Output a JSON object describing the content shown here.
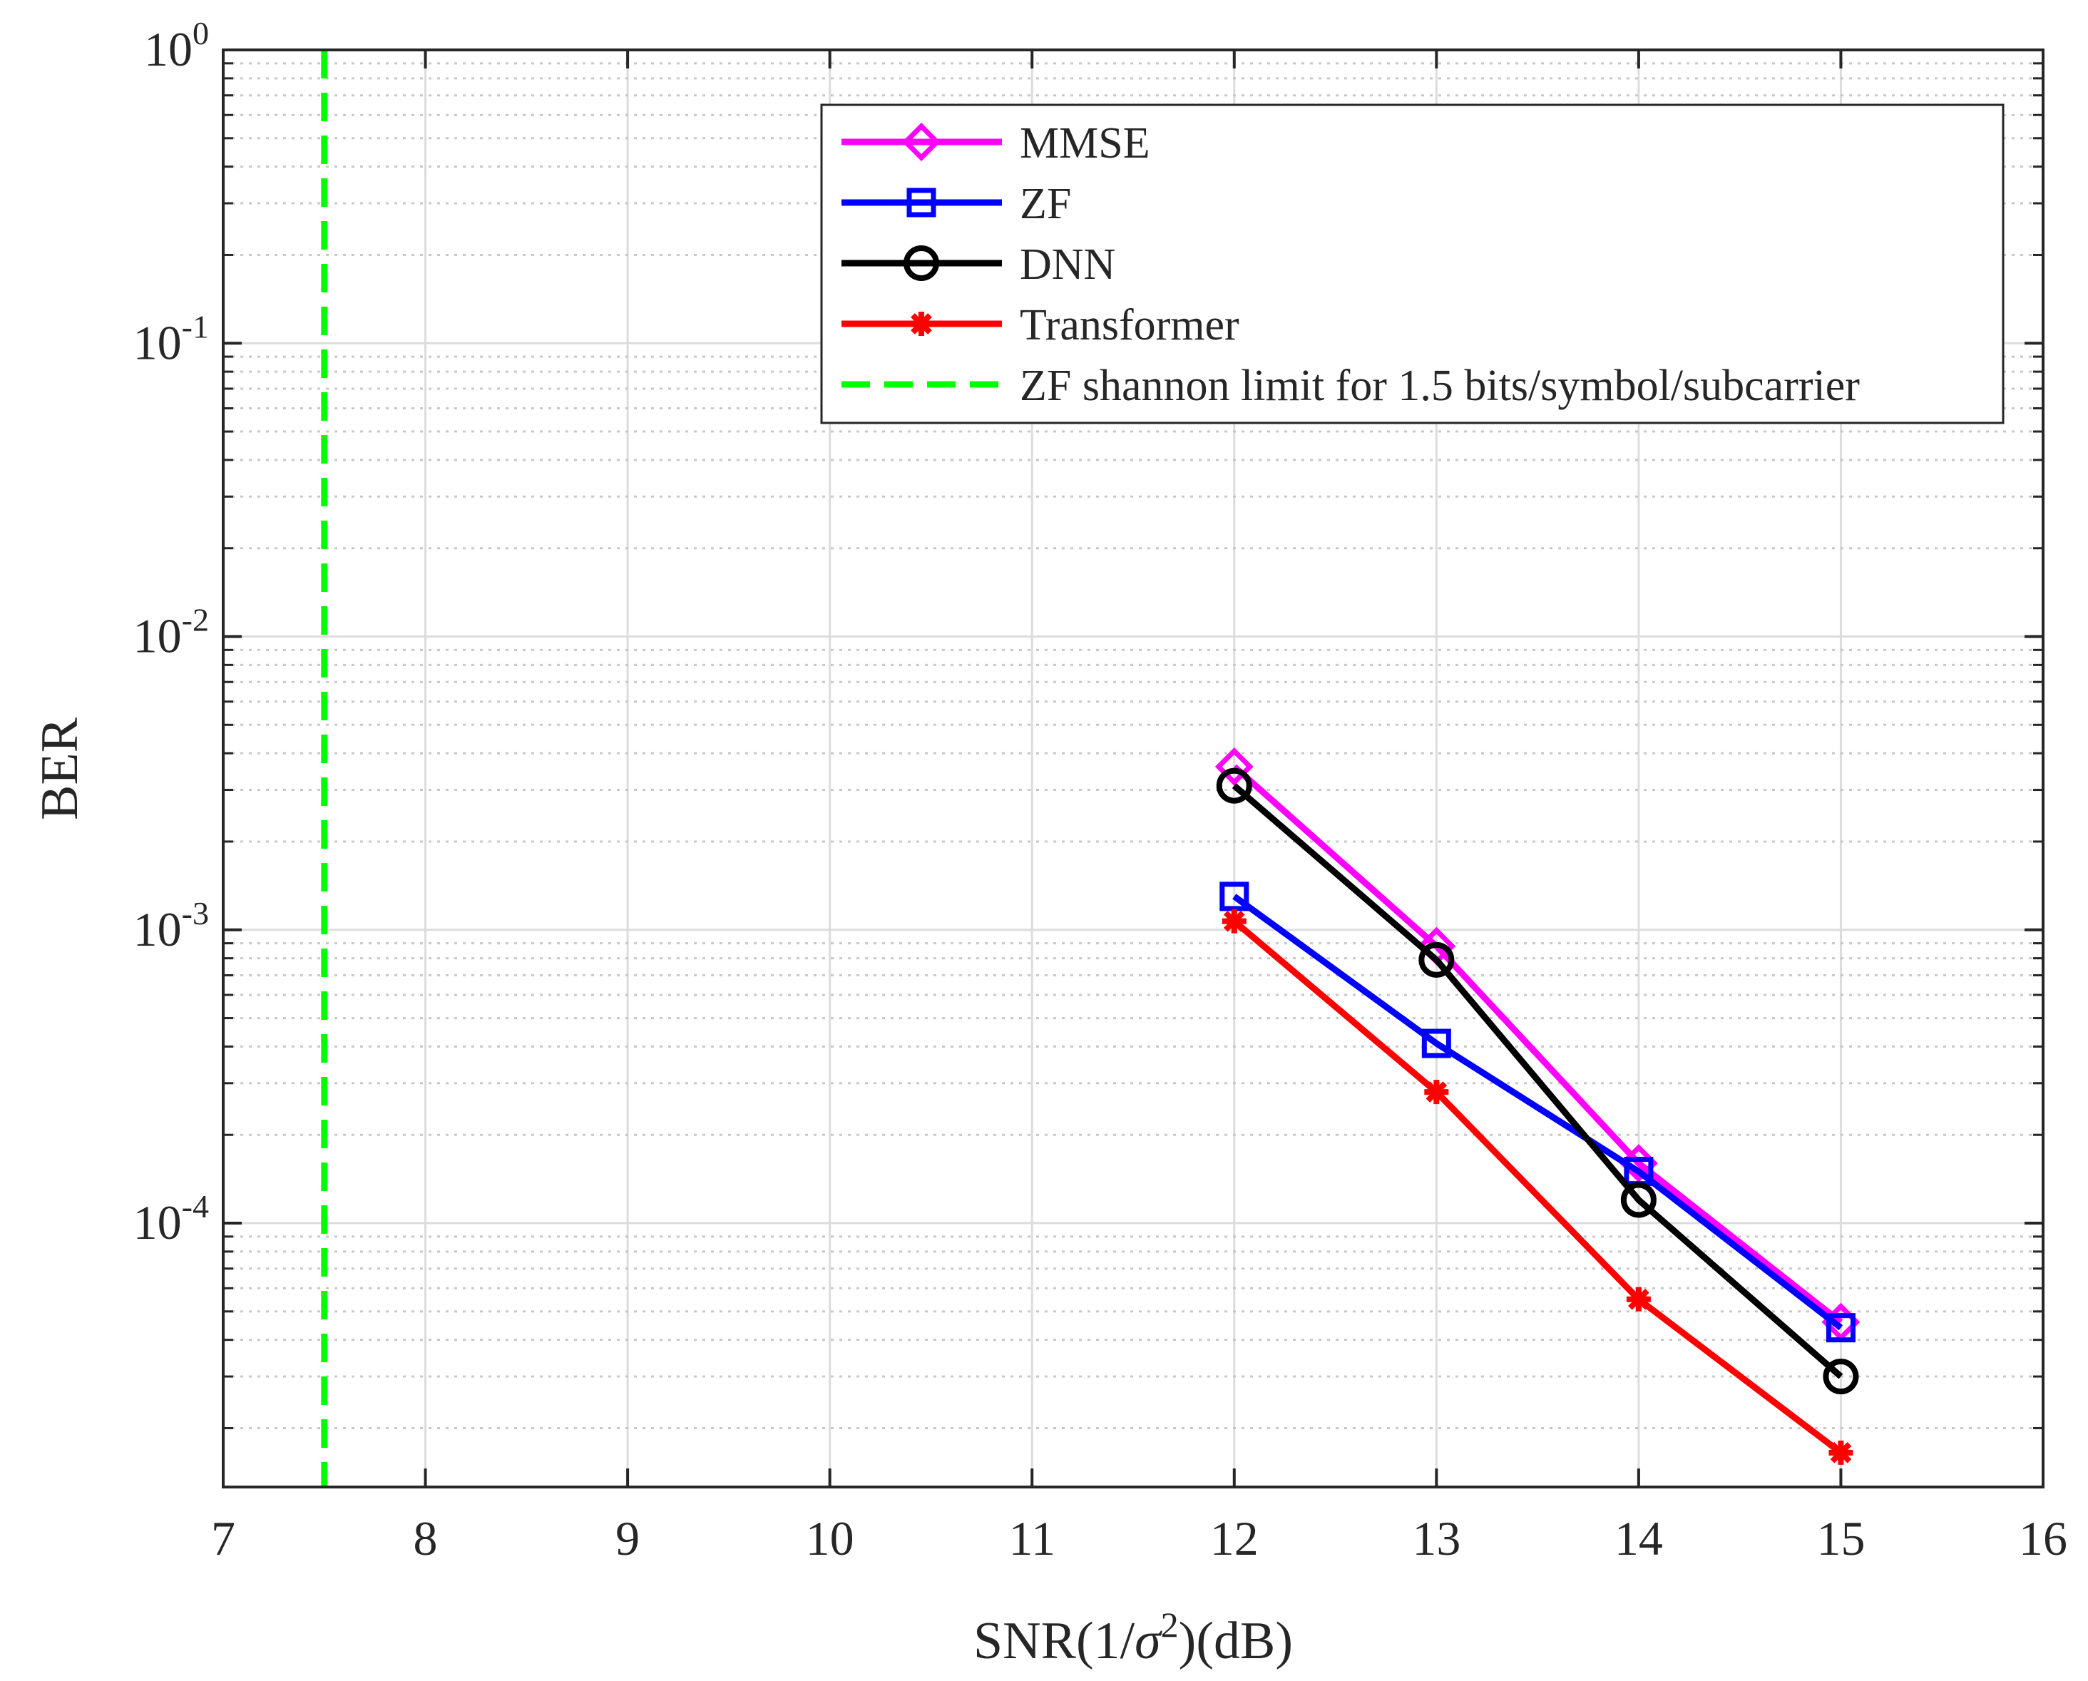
{
  "chart_data": {
    "type": "line",
    "title": "",
    "xlabel": "SNR(1/σ²)(dB)",
    "ylabel": "BER",
    "xlim": [
      7,
      16
    ],
    "ylim": [
      1.26e-05,
      1
    ],
    "yscale": "log",
    "grid": true,
    "x_ticks": [
      7,
      8,
      9,
      10,
      11,
      12,
      13,
      14,
      15,
      16
    ],
    "y_ticks": [
      {
        "value": 1,
        "base": "10",
        "exp": "0"
      },
      {
        "value": 0.1,
        "base": "10",
        "exp": "-1"
      },
      {
        "value": 0.01,
        "base": "10",
        "exp": "-2"
      },
      {
        "value": 0.001,
        "base": "10",
        "exp": "-3"
      },
      {
        "value": 0.0001,
        "base": "10",
        "exp": "-4"
      }
    ],
    "legend_position": "top-right",
    "series": [
      {
        "name": "MMSE",
        "color": "#ff00ff",
        "marker": "diamond",
        "x": [
          12,
          13,
          14,
          15
        ],
        "values": [
          0.0036,
          0.00088,
          0.00016,
          4.6e-05
        ]
      },
      {
        "name": "ZF",
        "color": "#0000ff",
        "marker": "square",
        "x": [
          12,
          13,
          14,
          15
        ],
        "values": [
          0.0013,
          0.00041,
          0.00015,
          4.4e-05
        ]
      },
      {
        "name": "DNN",
        "color": "#000000",
        "marker": "circle",
        "x": [
          12,
          13,
          14,
          15
        ],
        "values": [
          0.0031,
          0.00079,
          0.00012,
          3e-05
        ]
      },
      {
        "name": "Transformer",
        "color": "#ff0000",
        "marker": "asterisk",
        "x": [
          12,
          13,
          14,
          15
        ],
        "values": [
          0.00107,
          0.00028,
          5.5e-05,
          1.65e-05
        ]
      },
      {
        "name": "ZF shannon limit for 1.5 bits/symbol/subcarrier",
        "color": "#00ff00",
        "marker": "none",
        "style": "dashed",
        "vline_x": 7.5
      }
    ]
  }
}
